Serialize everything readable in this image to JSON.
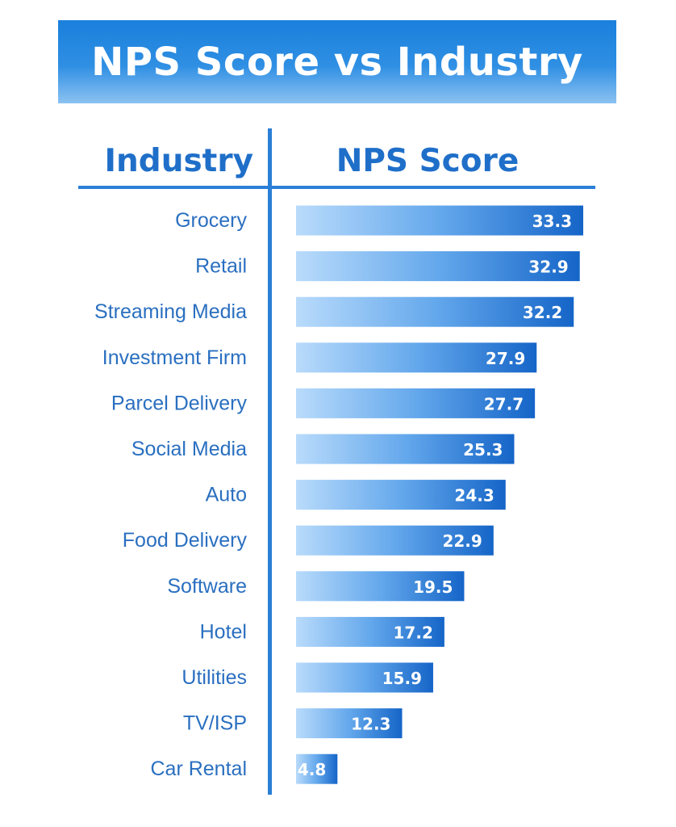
{
  "title": "NPS Score vs Industry",
  "headers": {
    "industry": "Industry",
    "score": "NPS Score"
  },
  "colors": {
    "banner": "#1a80dc",
    "accent": "#2a7fd6",
    "label": "#2a6fc0",
    "bar_dark": "#1565c8",
    "bar_light": "#b9dbfb"
  },
  "chart_data": {
    "type": "bar",
    "orientation": "horizontal",
    "categories": [
      "Grocery",
      "Retail",
      "Streaming Media",
      "Investment Firm",
      "Parcel Delivery",
      "Social Media",
      "Auto",
      "Food Delivery",
      "Software",
      "Hotel",
      "Utilities",
      "TV/ISP",
      "Car Rental"
    ],
    "values": [
      33.3,
      32.9,
      32.2,
      27.9,
      27.7,
      25.3,
      24.3,
      22.9,
      19.5,
      17.2,
      15.9,
      12.3,
      4.8
    ],
    "data_labels": [
      "33.3",
      "32.9",
      "32.2",
      "27.9",
      "27.7",
      "25.3",
      "24.3",
      "22.9",
      "19.5",
      "17.2",
      "15.9",
      "12.3",
      "4.8"
    ],
    "title": "NPS Score vs Industry",
    "xlabel": "NPS Score",
    "ylabel": "Industry",
    "grid": false,
    "legend": "none"
  }
}
